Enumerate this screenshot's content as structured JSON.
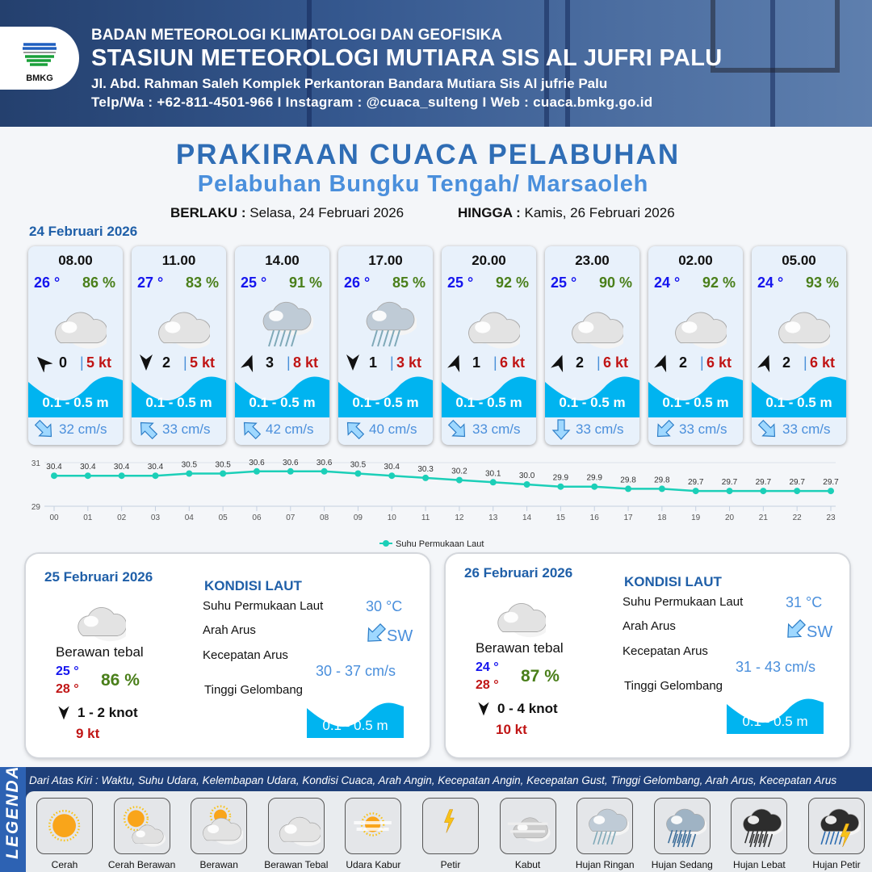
{
  "header": {
    "logo_text": "BMKG",
    "agency": "BADAN METEOROLOGI KLIMATOLOGI DAN GEOFISIKA",
    "station": "STASIUN METEOROLOGI MUTIARA SIS AL JUFRI PALU",
    "address": "Jl. Abd. Rahman Saleh Komplek Perkantoran Bandara Mutiara Sis Al jufrie Palu",
    "contact": "Telp/Wa : +62-811-4501-966  I  Instagram : @cuaca_sulteng  I  Web : cuaca.bmkg.go.id"
  },
  "title": "PRAKIRAAN CUACA PELABUHAN",
  "subtitle": "Pelabuhan Bungku Tengah/ Marsaoleh",
  "validity": {
    "from_label": "BERLAKU :",
    "from": "Selasa, 24 Februari 2026",
    "to_label": "HINGGA :",
    "to": "Kamis, 26 Februari 2026"
  },
  "day1": {
    "date": "24 Februari 2026",
    "cards": [
      {
        "time": "08.00",
        "temp": "26 °",
        "hum": "86 %",
        "icon": "berawan-tebal",
        "wind_dir_deg": 315,
        "wind": "0",
        "gust": "5 kt",
        "wave": "0.1 - 0.5 m",
        "current_dir_deg": 135,
        "current": "32 cm/s"
      },
      {
        "time": "11.00",
        "temp": "27 °",
        "hum": "83 %",
        "icon": "berawan-tebal",
        "wind_dir_deg": 180,
        "wind": "2",
        "gust": "5 kt",
        "wave": "0.1 - 0.5 m",
        "current_dir_deg": 315,
        "current": "33 cm/s"
      },
      {
        "time": "14.00",
        "temp": "25 °",
        "hum": "91 %",
        "icon": "hujan-ringan",
        "wind_dir_deg": 20,
        "wind": "3",
        "gust": "8 kt",
        "wave": "0.1 - 0.5 m",
        "current_dir_deg": 315,
        "current": "42 cm/s"
      },
      {
        "time": "17.00",
        "temp": "26 °",
        "hum": "85 %",
        "icon": "hujan-ringan",
        "wind_dir_deg": 180,
        "wind": "1",
        "gust": "3 kt",
        "wave": "0.1 - 0.5 m",
        "current_dir_deg": 315,
        "current": "40 cm/s"
      },
      {
        "time": "20.00",
        "temp": "25 °",
        "hum": "92 %",
        "icon": "berawan-tebal",
        "wind_dir_deg": 20,
        "wind": "1",
        "gust": "6 kt",
        "wave": "0.1 - 0.5 m",
        "current_dir_deg": 135,
        "current": "33 cm/s"
      },
      {
        "time": "23.00",
        "temp": "25 °",
        "hum": "90 %",
        "icon": "berawan-tebal",
        "wind_dir_deg": 20,
        "wind": "2",
        "gust": "6 kt",
        "wave": "0.1 - 0.5 m",
        "current_dir_deg": 180,
        "current": "33 cm/s"
      },
      {
        "time": "02.00",
        "temp": "24 °",
        "hum": "92 %",
        "icon": "berawan-tebal",
        "wind_dir_deg": 20,
        "wind": "2",
        "gust": "6 kt",
        "wave": "0.1 - 0.5 m",
        "current_dir_deg": 225,
        "current": "33 cm/s"
      },
      {
        "time": "05.00",
        "temp": "24 °",
        "hum": "93 %",
        "icon": "berawan-tebal",
        "wind_dir_deg": 20,
        "wind": "2",
        "gust": "6 kt",
        "wave": "0.1 - 0.5 m",
        "current_dir_deg": 135,
        "current": "33 cm/s"
      }
    ]
  },
  "chart_data": {
    "type": "line",
    "x": [
      "00",
      "01",
      "02",
      "03",
      "04",
      "05",
      "06",
      "07",
      "08",
      "09",
      "10",
      "11",
      "12",
      "13",
      "14",
      "15",
      "16",
      "17",
      "18",
      "19",
      "20",
      "21",
      "22",
      "23"
    ],
    "series": [
      {
        "name": "Suhu Permukaan Laut",
        "values": [
          30.4,
          30.4,
          30.4,
          30.4,
          30.5,
          30.5,
          30.6,
          30.6,
          30.6,
          30.5,
          30.4,
          30.3,
          30.2,
          30.1,
          30.0,
          29.9,
          29.9,
          29.8,
          29.8,
          29.7,
          29.7,
          29.7,
          29.7,
          29.7
        ],
        "labels": [
          "30.4",
          "30.4",
          "30.4",
          "30.4",
          "30.5",
          "30.5",
          "30.6",
          "30.6",
          "30.6",
          "30.5",
          "30.4",
          "30.3",
          "30.2",
          "30.1",
          "30.0",
          "29.9",
          "29.9",
          "29.8",
          "29.8",
          "29.7",
          "29.7",
          "29.7",
          "29.7",
          "29.7"
        ]
      }
    ],
    "yticks": [
      "29",
      "31"
    ],
    "ylim": [
      29,
      31
    ],
    "grid": true,
    "legend_position": "bottom",
    "color": "#1ccfb8"
  },
  "panels": [
    {
      "date": "25 Februari 2026",
      "icon": "berawan-tebal",
      "condition": "Berawan tebal",
      "tmin": "25 °",
      "tmax": "28 °",
      "hum": "86 %",
      "wind_dir_deg": 180,
      "wind": "1 - 2 knot",
      "gust": "9 kt",
      "kondisi_label": "KONDISI LAUT",
      "sst_label": "Suhu Permukaan Laut",
      "sst": "30 °C",
      "dir_label": "Arah Arus",
      "dir": "SW",
      "current_dir_deg": 225,
      "speed_label": "Kecepatan Arus",
      "speed": "30 - 37 cm/s",
      "wave_label": "Tinggi Gelombang",
      "wave": "0.1 - 0.5 m"
    },
    {
      "date": "26 Februari 2026",
      "icon": "berawan-tebal",
      "condition": "Berawan tebal",
      "tmin": "24 °",
      "tmax": "28 °",
      "hum": "87 %",
      "wind_dir_deg": 180,
      "wind": "0 - 4 knot",
      "gust": "10 kt",
      "kondisi_label": "KONDISI LAUT",
      "sst_label": "Suhu Permukaan Laut",
      "sst": "31 °C",
      "dir_label": "Arah Arus",
      "dir": "SW",
      "current_dir_deg": 225,
      "speed_label": "Kecepatan Arus",
      "speed": "31 - 43 cm/s",
      "wave_label": "Tinggi Gelombang",
      "wave": "0.1 - 0.5 m"
    }
  ],
  "legend": {
    "title": "LEGENDA",
    "description": "Dari Atas Kiri : Waktu, Suhu Udara, Kelembapan Udara, Kondisi Cuaca, Arah Angin, Kecepatan Angin, Kecepatan Gust, Tinggi Gelombang, Arah Arus, Kecepatan Arus",
    "items": [
      {
        "label": "Cerah",
        "icon": "cerah"
      },
      {
        "label": "Cerah Berawan",
        "icon": "cerah-berawan"
      },
      {
        "label": "Berawan",
        "icon": "berawan"
      },
      {
        "label": "Berawan Tebal",
        "icon": "berawan-tebal"
      },
      {
        "label": "Udara Kabur",
        "icon": "udara-kabur"
      },
      {
        "label": "Petir",
        "icon": "petir"
      },
      {
        "label": "Kabut",
        "icon": "kabut"
      },
      {
        "label": "Hujan Ringan",
        "icon": "hujan-ringan"
      },
      {
        "label": "Hujan Sedang",
        "icon": "hujan-sedang"
      },
      {
        "label": "Hujan Lebat",
        "icon": "hujan-lebat"
      },
      {
        "label": "Hujan Petir",
        "icon": "hujan-petir"
      }
    ]
  },
  "colors": {
    "wave": "#00b4f0",
    "title": "#2f6db5",
    "temp": "#1515ee",
    "humidity": "#4a7f1a",
    "gust": "#c01515",
    "current": "#4a8fdc"
  }
}
